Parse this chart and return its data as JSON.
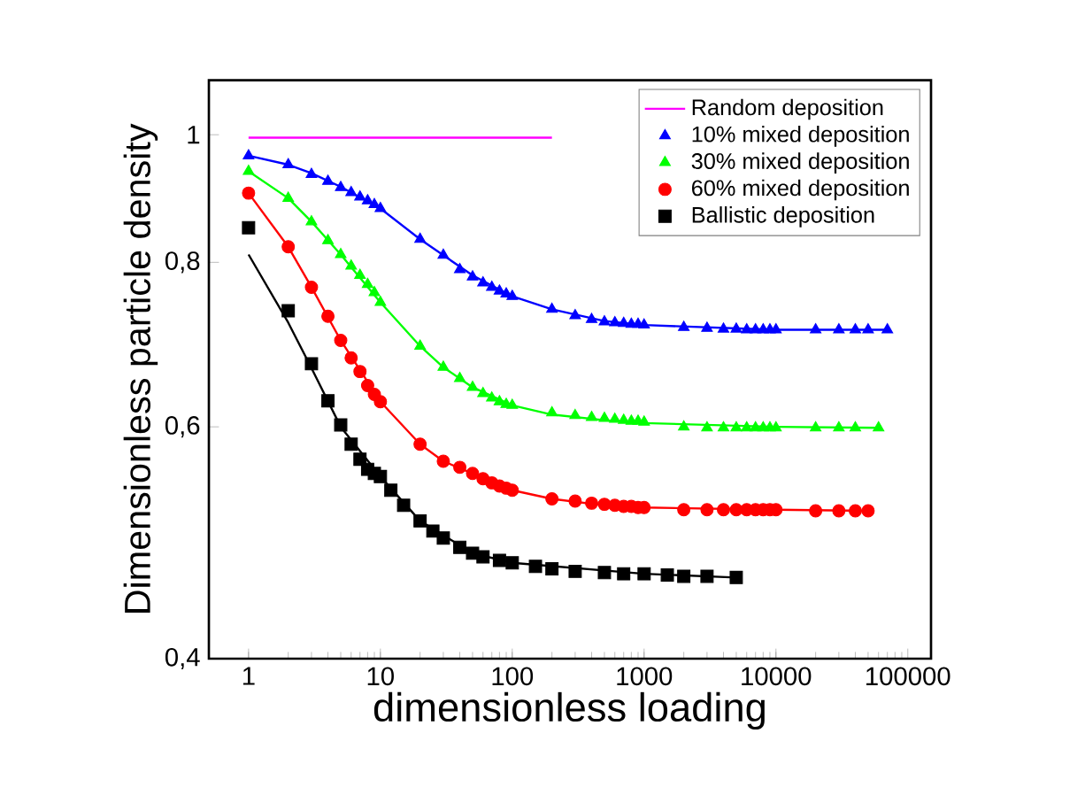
{
  "chart_data": {
    "type": "scatter",
    "xlabel": "dimensionless loading",
    "ylabel": "Dimensionless particle density",
    "log": "xy",
    "xlim": [
      0.5,
      150000
    ],
    "ylim": [
      0.4,
      1.1
    ],
    "xticks": [
      1,
      10,
      100,
      1000,
      10000,
      100000
    ],
    "yticks": [
      {
        "value": 0.4,
        "label": "0,4"
      },
      {
        "value": 0.6,
        "label": "0,6"
      },
      {
        "value": 0.8,
        "label": "0,8"
      },
      1
    ],
    "legend": "top right",
    "grid": false,
    "series": [
      {
        "name": "Random deposition",
        "type": "line",
        "color": "#ff00ff",
        "marker": "none",
        "x": [
          1,
          200
        ],
        "values": [
          0.995,
          0.995
        ]
      },
      {
        "name": "10% mixed deposition",
        "color": "#0000ff",
        "marker": "triangle",
        "x": [
          1,
          2,
          3,
          4,
          5,
          6,
          7,
          8,
          9,
          10,
          20,
          30,
          40,
          50,
          60,
          70,
          80,
          90,
          100,
          200,
          300,
          400,
          500,
          600,
          700,
          800,
          900,
          1000,
          2000,
          3000,
          4000,
          5000,
          6000,
          7000,
          8000,
          9000,
          10000,
          20000,
          30000,
          40000,
          50000,
          70000
        ],
        "values": [
          0.964,
          0.949,
          0.933,
          0.922,
          0.912,
          0.904,
          0.897,
          0.891,
          0.885,
          0.879,
          0.833,
          0.81,
          0.79,
          0.78,
          0.772,
          0.766,
          0.761,
          0.757,
          0.754,
          0.737,
          0.729,
          0.724,
          0.721,
          0.72,
          0.719,
          0.718,
          0.718,
          0.717,
          0.714,
          0.713,
          0.712,
          0.712,
          0.711,
          0.711,
          0.711,
          0.711,
          0.711,
          0.711,
          0.711,
          0.711,
          0.711,
          0.711
        ]
      },
      {
        "name": "30% mixed deposition",
        "color": "#00ff00",
        "marker": "triangle",
        "x": [
          1,
          2,
          3,
          4,
          5,
          6,
          7,
          8,
          9,
          10,
          20,
          30,
          40,
          50,
          60,
          70,
          80,
          90,
          100,
          200,
          300,
          400,
          500,
          600,
          700,
          800,
          900,
          1000,
          2000,
          3000,
          4000,
          5000,
          6000,
          7000,
          8000,
          9000,
          10000,
          20000,
          30000,
          40000,
          60000
        ],
        "values": [
          0.938,
          0.895,
          0.859,
          0.831,
          0.811,
          0.795,
          0.782,
          0.77,
          0.759,
          0.746,
          0.691,
          0.666,
          0.653,
          0.643,
          0.636,
          0.631,
          0.627,
          0.624,
          0.623,
          0.615,
          0.612,
          0.61,
          0.609,
          0.608,
          0.607,
          0.606,
          0.606,
          0.605,
          0.6,
          0.599,
          0.599,
          0.599,
          0.599,
          0.599,
          0.599,
          0.599,
          0.599,
          0.599,
          0.599,
          0.599,
          0.599
        ]
      },
      {
        "name": "60% mixed deposition",
        "color": "#ff0000",
        "marker": "circle",
        "x": [
          1,
          2,
          3,
          4,
          5,
          6,
          7,
          8,
          9,
          10,
          20,
          30,
          40,
          50,
          60,
          70,
          80,
          90,
          100,
          200,
          300,
          400,
          500,
          600,
          700,
          800,
          900,
          1000,
          2000,
          3000,
          4000,
          5000,
          6000,
          7000,
          8000,
          9000,
          10000,
          20000,
          30000,
          40000,
          50000
        ],
        "values": [
          0.903,
          0.822,
          0.766,
          0.728,
          0.698,
          0.677,
          0.661,
          0.645,
          0.635,
          0.627,
          0.582,
          0.565,
          0.559,
          0.553,
          0.548,
          0.544,
          0.541,
          0.539,
          0.537,
          0.529,
          0.527,
          0.525,
          0.524,
          0.523,
          0.522,
          0.522,
          0.521,
          0.521,
          0.519,
          0.519,
          0.519,
          0.519,
          0.519,
          0.519,
          0.519,
          0.519,
          0.519,
          0.518,
          0.518,
          0.518,
          0.518
        ]
      },
      {
        "name": "Ballistic deposition",
        "color": "#000000",
        "marker": "square",
        "x": [
          1,
          2,
          3,
          4,
          5,
          6,
          7,
          8,
          9,
          10,
          12,
          15,
          20,
          25,
          30,
          40,
          50,
          60,
          80,
          100,
          150,
          200,
          300,
          500,
          700,
          1000,
          1500,
          2000,
          3000,
          5000
        ],
        "values": [
          0.85,
          0.735,
          0.67,
          0.628,
          0.602,
          0.582,
          0.567,
          0.557,
          0.553,
          0.55,
          0.537,
          0.523,
          0.509,
          0.5,
          0.494,
          0.486,
          0.481,
          0.478,
          0.475,
          0.473,
          0.47,
          0.468,
          0.466,
          0.465,
          0.464,
          0.464,
          0.463,
          0.462,
          0.462,
          0.461
        ]
      },
      {
        "type": "line",
        "color": "#0000ff",
        "marker": "none",
        "x": [
          1,
          2,
          3,
          5,
          10,
          20,
          30,
          50,
          100,
          200,
          500,
          1000,
          10000,
          70000
        ],
        "values": [
          0.964,
          0.949,
          0.935,
          0.913,
          0.879,
          0.833,
          0.81,
          0.782,
          0.754,
          0.737,
          0.722,
          0.717,
          0.711,
          0.711
        ]
      },
      {
        "type": "line",
        "color": "#00ff00",
        "marker": "none",
        "x": [
          1,
          2,
          3,
          5,
          10,
          20,
          30,
          50,
          100,
          200,
          500,
          1000,
          10000,
          60000
        ],
        "values": [
          0.938,
          0.895,
          0.859,
          0.811,
          0.746,
          0.691,
          0.666,
          0.643,
          0.623,
          0.613,
          0.607,
          0.604,
          0.6,
          0.599
        ]
      },
      {
        "type": "line",
        "color": "#ff0000",
        "marker": "none",
        "x": [
          1,
          2,
          3,
          5,
          10,
          20,
          30,
          50,
          100,
          200,
          500,
          1000,
          10000,
          50000
        ],
        "values": [
          0.903,
          0.822,
          0.766,
          0.698,
          0.627,
          0.582,
          0.565,
          0.553,
          0.537,
          0.529,
          0.523,
          0.521,
          0.519,
          0.518
        ]
      },
      {
        "type": "line",
        "color": "#000000",
        "marker": "none",
        "x": [
          1,
          2,
          3,
          5,
          10,
          20,
          50,
          100,
          1000,
          5000
        ],
        "values": [
          0.811,
          0.72,
          0.665,
          0.6,
          0.55,
          0.509,
          0.481,
          0.473,
          0.464,
          0.461
        ]
      }
    ]
  }
}
